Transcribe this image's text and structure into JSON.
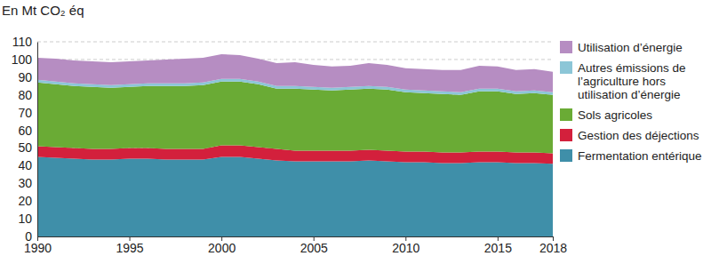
{
  "chart_data": {
    "type": "area",
    "stacked": true,
    "grid": true,
    "legend": "right",
    "y_label": "En Mt CO₂ éq",
    "x": [
      1990,
      1991,
      1992,
      1993,
      1994,
      1995,
      1996,
      1997,
      1998,
      1999,
      2000,
      2001,
      2002,
      2003,
      2004,
      2005,
      2006,
      2007,
      2008,
      2009,
      2010,
      2011,
      2012,
      2013,
      2014,
      2015,
      2016,
      2017,
      2018
    ],
    "xlim": [
      1990,
      2018
    ],
    "xticks": [
      1990,
      1995,
      2000,
      2005,
      2010,
      2015,
      2018
    ],
    "ylim": [
      0,
      110
    ],
    "yticks": [
      0,
      10,
      20,
      30,
      40,
      50,
      60,
      70,
      80,
      90,
      100,
      110
    ],
    "series": [
      {
        "name": "Fermentation entérique",
        "color": "#3f8fa9",
        "values": [
          45,
          44.5,
          44,
          43.5,
          43.5,
          44,
          44,
          43.5,
          43.5,
          43.5,
          45,
          45,
          44,
          43,
          42.5,
          42.5,
          42.5,
          42.5,
          43,
          42.5,
          42,
          42,
          41.5,
          41.5,
          42,
          42,
          41.5,
          41.5,
          41
        ]
      },
      {
        "name": "Gestion des déjections",
        "color": "#d3203c",
        "values": [
          6,
          6,
          6,
          6,
          6,
          6,
          6,
          6,
          6,
          6,
          6.5,
          6.5,
          6.5,
          6.5,
          6,
          6,
          6,
          6,
          6,
          6,
          6,
          6,
          6,
          6,
          6,
          6,
          6,
          6,
          6
        ]
      },
      {
        "name": "Sols agricoles",
        "color": "#6aab35",
        "values": [
          36,
          35.5,
          35,
          35,
          34.5,
          34.5,
          35,
          35.5,
          35.5,
          36,
          36,
          36,
          35.5,
          34,
          35,
          34.5,
          34,
          34.5,
          34.5,
          34.5,
          33.5,
          33,
          33,
          32.5,
          34,
          34,
          33,
          33.5,
          33
        ]
      },
      {
        "name": "Autres émissions de l’agriculture hors utilisation d’énergie",
        "color": "#8cc6d7",
        "values": [
          1.5,
          1.5,
          1.5,
          1.5,
          1.5,
          1.5,
          1.5,
          1.5,
          1.5,
          1.5,
          1.5,
          1.5,
          1.5,
          1.5,
          1.5,
          1.5,
          1.5,
          1.5,
          1.5,
          1.5,
          1.5,
          1.5,
          1.5,
          1.5,
          1.5,
          1.5,
          1.5,
          1.5,
          1.5
        ]
      },
      {
        "name": "Utilisation d’énergie",
        "color": "#b68dc2",
        "values": [
          12.5,
          13,
          13,
          13,
          13,
          13,
          13,
          13.5,
          14,
          14,
          14,
          13.5,
          13,
          13,
          13.5,
          12.5,
          12,
          12,
          13,
          12.5,
          12,
          12,
          12,
          12.5,
          13,
          12.5,
          12,
          12,
          11.5
        ]
      }
    ]
  }
}
